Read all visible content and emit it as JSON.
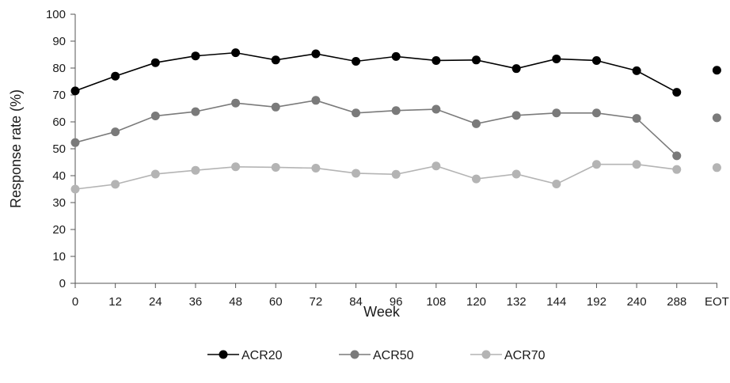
{
  "chart_data": {
    "type": "line",
    "title": "",
    "xlabel": "Week",
    "ylabel": "Response rate (%)",
    "categories": [
      "0",
      "12",
      "24",
      "36",
      "48",
      "60",
      "72",
      "84",
      "96",
      "108",
      "120",
      "132",
      "144",
      "192",
      "240",
      "288",
      "EOT"
    ],
    "ylim": [
      0,
      100
    ],
    "yticks": [
      "0",
      "10",
      "20",
      "30",
      "40",
      "50",
      "60",
      "70",
      "80",
      "90",
      "100"
    ],
    "grid": false,
    "legend_position": "bottom",
    "eot_connected": false,
    "series": [
      {
        "name": "ACR20",
        "color": "#000000",
        "values": [
          71.5,
          77,
          82,
          84.5,
          85.7,
          83,
          85.3,
          82.5,
          84.3,
          82.8,
          83,
          79.8,
          83.4,
          82.8,
          79,
          71,
          79.2
        ]
      },
      {
        "name": "ACR50",
        "color": "#7a7a7a",
        "values": [
          52.3,
          56.3,
          62.2,
          63.8,
          67,
          65.5,
          68,
          63.3,
          64.2,
          64.7,
          59.3,
          62.4,
          63.3,
          63.3,
          61.3,
          47.4,
          61.5
        ]
      },
      {
        "name": "ACR70",
        "color": "#b4b4b4",
        "values": [
          35,
          36.8,
          40.6,
          42,
          43.3,
          43.1,
          42.8,
          40.9,
          40.5,
          43.6,
          38.8,
          40.6,
          36.9,
          44.2,
          44.2,
          42.3,
          43
        ]
      }
    ]
  }
}
